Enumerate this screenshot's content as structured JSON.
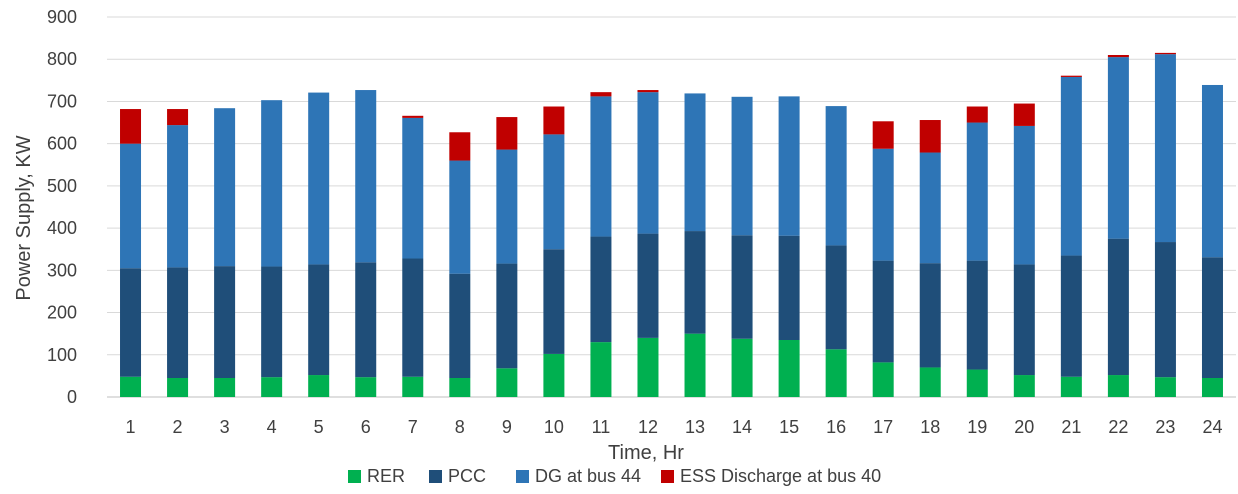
{
  "chart_data": {
    "type": "bar",
    "stacked": true,
    "title": "",
    "xlabel": "Time, Hr",
    "ylabel": "Power Supply, KW",
    "ylim": [
      0,
      900
    ],
    "yticks": [
      "0",
      "100",
      "200",
      "300",
      "400",
      "500",
      "600",
      "700",
      "800",
      "900"
    ],
    "grid": true,
    "legend_position": "bottom",
    "categories": [
      "1",
      "2",
      "3",
      "4",
      "5",
      "6",
      "7",
      "8",
      "9",
      "10",
      "11",
      "12",
      "13",
      "14",
      "15",
      "16",
      "17",
      "18",
      "19",
      "20",
      "21",
      "22",
      "23",
      "24"
    ],
    "series": [
      {
        "name": "RER",
        "color": "#00b050",
        "values": [
          48,
          45,
          45,
          47,
          52,
          47,
          48,
          45,
          68,
          102,
          130,
          140,
          150,
          138,
          135,
          113,
          82,
          70,
          65,
          52,
          48,
          52,
          47,
          45
        ]
      },
      {
        "name": "PCC",
        "color": "#1f4e79",
        "values": [
          257,
          262,
          265,
          262,
          262,
          272,
          280,
          247,
          248,
          248,
          250,
          247,
          243,
          245,
          247,
          246,
          241,
          247,
          258,
          262,
          287,
          323,
          320,
          286
        ]
      },
      {
        "name": "DG at bus 44",
        "color": "#2e75b6",
        "values": [
          295,
          337,
          374,
          394,
          407,
          408,
          333,
          268,
          270,
          272,
          332,
          335,
          326,
          328,
          330,
          330,
          265,
          262,
          327,
          328,
          423,
          430,
          445,
          408
        ]
      },
      {
        "name": "ESS Discharge at bus 40",
        "color": "#c00000",
        "values": [
          82,
          38,
          0,
          0,
          0,
          0,
          5,
          67,
          77,
          66,
          10,
          5,
          0,
          0,
          0,
          0,
          65,
          77,
          38,
          53,
          3,
          5,
          3,
          0
        ]
      }
    ]
  }
}
